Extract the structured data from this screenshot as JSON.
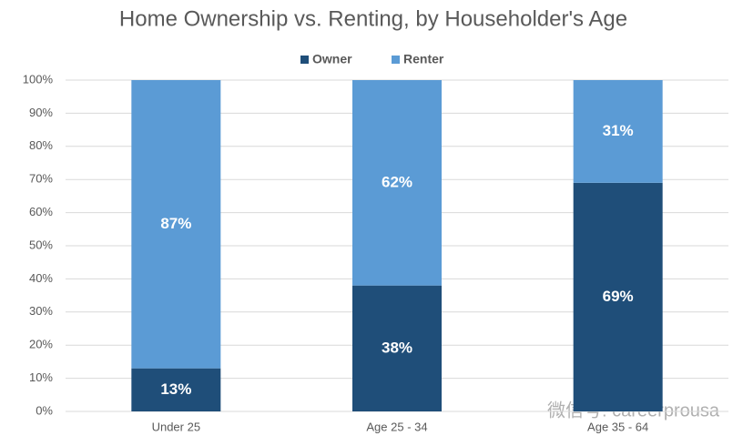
{
  "chart_data": {
    "type": "stacked_bar",
    "title": "Home Ownership vs. Renting, by Householder's Age",
    "categories": [
      "Under 25",
      "Age 25 - 34",
      "Age 35 - 64"
    ],
    "series": [
      {
        "name": "Owner",
        "color": "#1f4e79",
        "values": [
          13,
          38,
          69
        ],
        "value_labels": [
          "13%",
          "38%",
          "69%"
        ]
      },
      {
        "name": "Renter",
        "color": "#5b9bd5",
        "values": [
          87,
          62,
          31
        ],
        "value_labels": [
          "87%",
          "62%",
          "31%"
        ]
      }
    ],
    "ylim": [
      0,
      100
    ],
    "yticks": [
      {
        "value": 0,
        "label": "0%"
      },
      {
        "value": 10,
        "label": "10%"
      },
      {
        "value": 20,
        "label": "20%"
      },
      {
        "value": 30,
        "label": "30%"
      },
      {
        "value": 40,
        "label": "40%"
      },
      {
        "value": 50,
        "label": "50%"
      },
      {
        "value": 60,
        "label": "60%"
      },
      {
        "value": 70,
        "label": "70%"
      },
      {
        "value": 80,
        "label": "80%"
      },
      {
        "value": 90,
        "label": "90%"
      },
      {
        "value": 100,
        "label": "100%"
      }
    ],
    "grid": true,
    "legend": "top",
    "watermark": "微信号: careerprousa"
  }
}
